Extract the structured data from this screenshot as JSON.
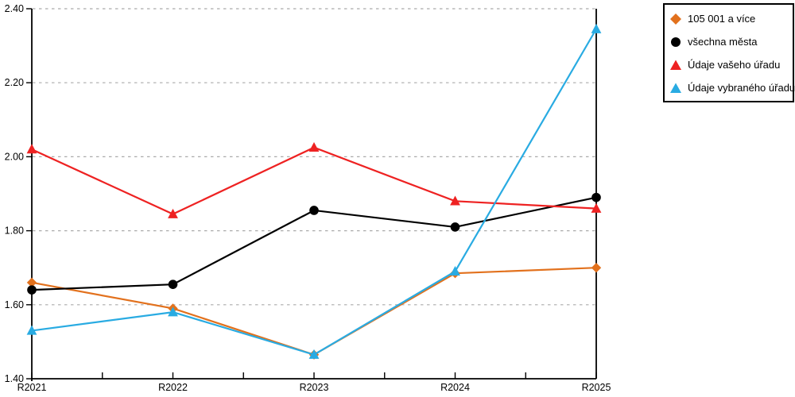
{
  "chart_data": {
    "type": "line",
    "title": "",
    "xlabel": "",
    "ylabel": "",
    "categories": [
      "R2021",
      "R2022",
      "R2023",
      "R2024",
      "R2025"
    ],
    "ylim": [
      1.4,
      2.4
    ],
    "yticks": [
      1.4,
      1.6,
      1.8,
      2.0,
      2.2,
      2.4
    ],
    "ytick_labels": [
      "1.40",
      "1.60",
      "1.80",
      "2.00",
      "2.20",
      "2.40"
    ],
    "grid": "horizontal-dashed",
    "legend_position": "top-right",
    "series": [
      {
        "id": "105-001-a-vice",
        "name": "105 001 a více",
        "color": "#E2711D",
        "marker": "diamond",
        "values": [
          1.66,
          1.59,
          1.465,
          1.685,
          1.7
        ]
      },
      {
        "id": "vsechna-mesta",
        "name": "všechna města",
        "color": "#000000",
        "marker": "circle",
        "values": [
          1.64,
          1.655,
          1.855,
          1.81,
          1.89
        ]
      },
      {
        "id": "udaje-vaseho-uradu",
        "name": "Údaje vašeho úřadu",
        "color": "#EE2222",
        "marker": "triangle",
        "values": [
          2.02,
          1.845,
          2.025,
          1.88,
          1.86
        ]
      },
      {
        "id": "udaje-vybraneho-uradu",
        "name": "Údaje vybraného úřadu",
        "color": "#29ABE2",
        "marker": "triangle",
        "values": [
          1.53,
          1.58,
          1.465,
          1.69,
          2.345
        ]
      }
    ],
    "colors": {
      "grid": "#ABABAB",
      "axis": "#000000",
      "background": "#FFFFFF"
    }
  }
}
